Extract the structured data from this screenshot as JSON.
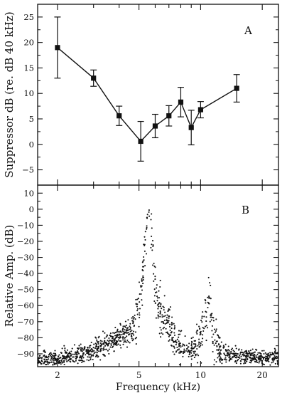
{
  "chart_data": [
    {
      "panel": "A",
      "type": "line",
      "ylabel": "Suppressor dB (re. dB 40 kHz)",
      "xlim": [
        1.6,
        24
      ],
      "x_scale": "log",
      "ylim": [
        -8,
        27.5
      ],
      "yticks": [
        -5,
        0,
        5,
        10,
        15,
        20,
        25
      ],
      "series": [
        {
          "x": [
            2,
            3,
            4,
            5.1,
            6,
            7,
            8,
            9,
            10,
            15
          ],
          "y": [
            19,
            13,
            5.6,
            0.6,
            3.6,
            5.6,
            8.3,
            3.3,
            6.8,
            11
          ],
          "err": [
            6,
            1.6,
            1.9,
            3.9,
            2.3,
            2.0,
            2.9,
            3.4,
            1.6,
            2.7
          ]
        }
      ]
    },
    {
      "panel": "B",
      "type": "scatter",
      "ylabel": "Relative Amp. (dB)",
      "xlabel": "Frequency (kHz)",
      "xlim": [
        1.6,
        24
      ],
      "x_scale": "log",
      "ylim": [
        -98,
        15
      ],
      "yticks": [
        -90,
        -80,
        -70,
        -60,
        -50,
        -40,
        -30,
        -20,
        -10,
        0,
        10
      ],
      "xticks": [
        2,
        5,
        10,
        20
      ],
      "profile": {
        "x": [
          1.6,
          2,
          2.5,
          3,
          3.5,
          4,
          4.5,
          4.8,
          5.0,
          5.2,
          5.4,
          5.6,
          5.8,
          6.0,
          6.3,
          6.6,
          7.0,
          7.5,
          8.0,
          8.5,
          9.0,
          9.5,
          10.0,
          10.5,
          10.8,
          11.0,
          11.2,
          11.5,
          12.0,
          13.0,
          15.0,
          18.0,
          24.0
        ],
        "y": [
          -94,
          -93,
          -91,
          -88,
          -84,
          -80,
          -75,
          -70,
          -62,
          -42,
          -15,
          -3,
          -22,
          -50,
          -62,
          -68,
          -74,
          -80,
          -85,
          -88,
          -88,
          -86,
          -80,
          -68,
          -60,
          -55,
          -62,
          -75,
          -85,
          -90,
          -91,
          -92,
          -93
        ]
      }
    }
  ]
}
